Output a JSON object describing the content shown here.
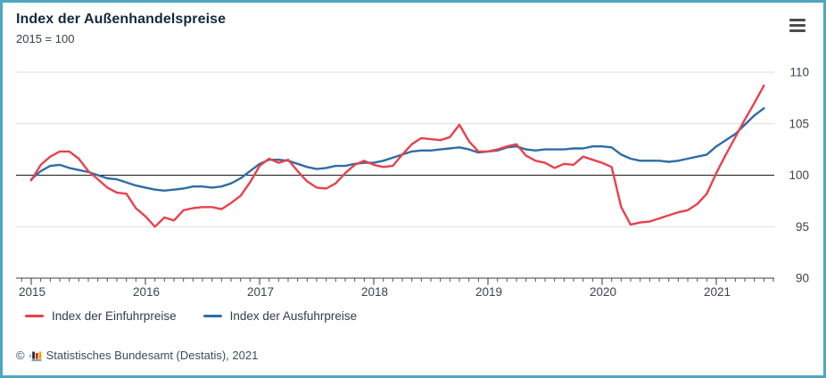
{
  "frame": {
    "border_color": "#4fa6c2",
    "background": "#ffffff"
  },
  "header": {
    "title": "Index der Außenhandelspreise",
    "subtitle": "2015 = 100"
  },
  "menu": {
    "icon": "hamburger-icon"
  },
  "legend": {
    "items": [
      {
        "id": "einfuhrpreise",
        "label": "Index der Einfuhrpreise",
        "color": "#e8414e"
      },
      {
        "id": "ausfuhrpreise",
        "label": "Index der Ausfuhrpreise",
        "color": "#2e6da4"
      }
    ]
  },
  "footer": {
    "copyright": "©",
    "logo": "destatis-bars-icon",
    "source": "Statistisches Bundesamt (Destatis), 2021"
  },
  "chart_data": {
    "type": "line",
    "title": "Index der Außenhandelspreise",
    "subtitle": "2015 = 100",
    "x_unit": "month",
    "x_start": "2015-01",
    "x_end": "2021-06",
    "x_tick_labels": [
      "2015",
      "2016",
      "2017",
      "2018",
      "2019",
      "2020",
      "2021"
    ],
    "y_ticks": [
      90,
      95,
      100,
      105,
      110
    ],
    "ylim": [
      90,
      110
    ],
    "baseline": 100,
    "grid": true,
    "legend_position": "bottom",
    "series": [
      {
        "id": "einfuhrpreise",
        "name": "Index der Einfuhrpreise",
        "color": "#e8414e",
        "values": [
          99.5,
          101.0,
          101.8,
          102.3,
          102.3,
          101.6,
          100.4,
          99.6,
          98.8,
          98.3,
          98.2,
          96.8,
          96.0,
          95.0,
          95.9,
          95.6,
          96.6,
          96.8,
          96.9,
          96.9,
          96.7,
          97.3,
          98.0,
          99.3,
          100.9,
          101.6,
          101.2,
          101.5,
          100.4,
          99.4,
          98.8,
          98.7,
          99.2,
          100.2,
          101.0,
          101.4,
          101.0,
          100.8,
          100.9,
          102.0,
          103.0,
          103.6,
          103.5,
          103.4,
          103.7,
          104.9,
          103.3,
          102.3,
          102.3,
          102.5,
          102.8,
          103.0,
          101.9,
          101.4,
          101.2,
          100.7,
          101.1,
          101.0,
          101.8,
          101.5,
          101.2,
          100.8,
          96.9,
          95.2,
          95.4,
          95.5,
          95.8,
          96.1,
          96.4,
          96.6,
          97.2,
          98.2,
          100.2,
          102.0,
          103.7,
          105.4,
          107.0,
          108.7
        ]
      },
      {
        "id": "ausfuhrpreise",
        "name": "Index der Ausfuhrpreise",
        "color": "#2e6da4",
        "values": [
          99.6,
          100.4,
          100.9,
          101.0,
          100.7,
          100.5,
          100.3,
          100.0,
          99.7,
          99.6,
          99.3,
          99.0,
          98.8,
          98.6,
          98.5,
          98.6,
          98.7,
          98.9,
          98.9,
          98.8,
          98.9,
          99.2,
          99.7,
          100.4,
          101.1,
          101.5,
          101.5,
          101.4,
          101.1,
          100.8,
          100.6,
          100.7,
          100.9,
          100.9,
          101.1,
          101.2,
          101.2,
          101.4,
          101.7,
          102.0,
          102.3,
          102.4,
          102.4,
          102.5,
          102.6,
          102.7,
          102.5,
          102.2,
          102.3,
          102.4,
          102.7,
          102.8,
          102.5,
          102.4,
          102.5,
          102.5,
          102.5,
          102.6,
          102.6,
          102.8,
          102.8,
          102.7,
          102.0,
          101.6,
          101.4,
          101.4,
          101.4,
          101.3,
          101.4,
          101.6,
          101.8,
          102.0,
          102.8,
          103.4,
          104.0,
          104.9,
          105.8,
          106.5
        ]
      }
    ]
  }
}
